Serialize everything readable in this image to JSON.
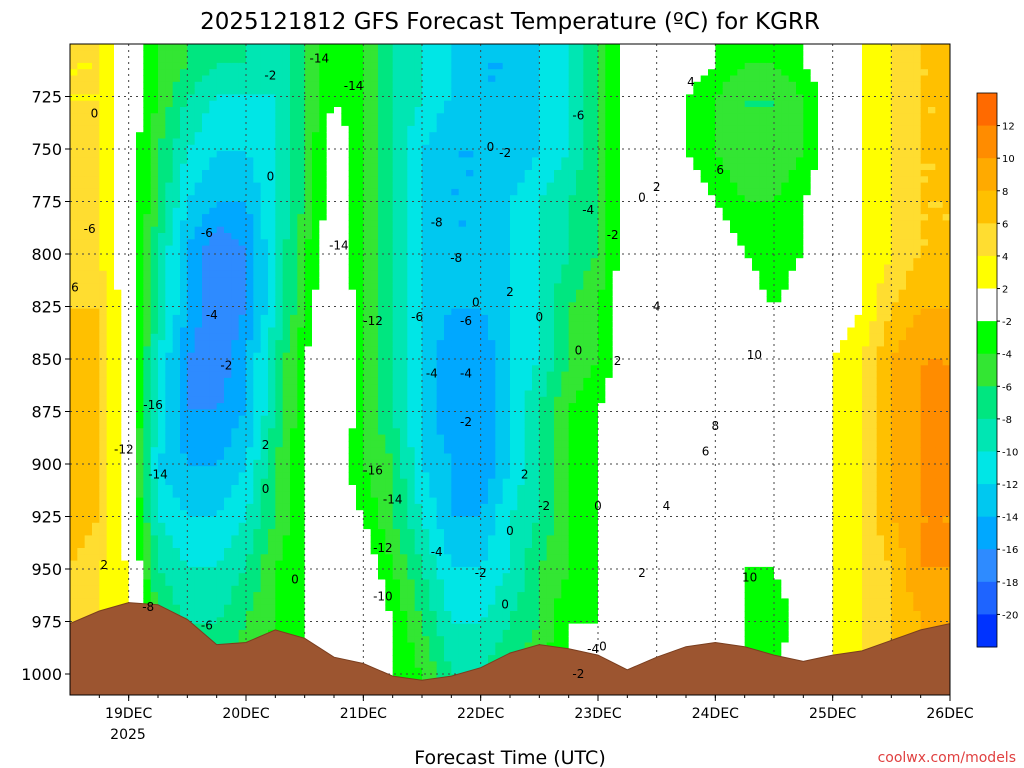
{
  "chart_data": {
    "type": "heatmap",
    "title": "2025121812 GFS Forecast Temperature (ºC) for KGRR",
    "xlabel": "Forecast Time (UTC)",
    "x_ticks": [
      "19DEC",
      "20DEC",
      "21DEC",
      "22DEC",
      "23DEC",
      "24DEC",
      "25DEC",
      "26DEC"
    ],
    "x_year_label": "2025",
    "y_ticks": [
      725,
      750,
      775,
      800,
      825,
      850,
      875,
      900,
      925,
      950,
      975,
      1000
    ],
    "ylim": [
      1010,
      700
    ],
    "y_unit": "hPa",
    "grid": true,
    "credit": "coolwx.com/models",
    "colorbar": {
      "labels": [
        12,
        10,
        8,
        6,
        4,
        2,
        -2,
        -4,
        -6,
        -8,
        -10,
        -12,
        -14,
        -16,
        -18,
        -20
      ],
      "colors": [
        "#ff6a00",
        "#ff8c00",
        "#ffaa00",
        "#ffc000",
        "#ffdd30",
        "#ffff00",
        "#ffffff",
        "#00ff00",
        "#33e633",
        "#00e680",
        "#00e6b3",
        "#00e6e6",
        "#00c8f0",
        "#00a8ff",
        "#2e8bff",
        "#1e64ff",
        "#0033ff"
      ]
    },
    "y_coords": [
      710,
      725,
      750,
      775,
      800,
      825,
      850,
      875,
      900,
      925,
      950,
      975,
      1000
    ],
    "x_hours": [
      0,
      6,
      12,
      18,
      24,
      30,
      36,
      42,
      48,
      54,
      60,
      66,
      72,
      78,
      84,
      90,
      96,
      102,
      108,
      114,
      120,
      126,
      132,
      138,
      144,
      150,
      156,
      162,
      168,
      174,
      180
    ],
    "temperature_c": [
      [
        4,
        4,
        0,
        -4,
        -6,
        -8,
        -8,
        -10,
        -6,
        -2,
        -4,
        -8,
        -10,
        -12,
        -14,
        -14,
        -12,
        -10,
        -6,
        0,
        0,
        0,
        -2,
        -4,
        -4,
        -2,
        0,
        2,
        4,
        6,
        6
      ],
      [
        4,
        4,
        0,
        -4,
        -8,
        -10,
        -10,
        -10,
        -6,
        -2,
        -4,
        -8,
        -10,
        -12,
        -14,
        -14,
        -12,
        -10,
        -6,
        0,
        0,
        -2,
        -4,
        -6,
        -6,
        -4,
        0,
        2,
        4,
        6,
        6
      ],
      [
        4,
        4,
        0,
        -6,
        -10,
        -12,
        -12,
        -10,
        -6,
        0,
        -4,
        -8,
        -12,
        -14,
        -14,
        -14,
        -12,
        -10,
        -6,
        0,
        0,
        -2,
        -4,
        -6,
        -6,
        -4,
        0,
        2,
        4,
        6,
        6
      ],
      [
        6,
        4,
        0,
        -6,
        -12,
        -14,
        -14,
        -10,
        -6,
        0,
        -4,
        -8,
        -12,
        -14,
        -14,
        -12,
        -10,
        -8,
        -6,
        0,
        0,
        0,
        -2,
        -4,
        -4,
        -2,
        0,
        2,
        4,
        6,
        6
      ],
      [
        6,
        4,
        0,
        -8,
        -14,
        -18,
        -16,
        -10,
        -4,
        0,
        -4,
        -8,
        -12,
        -14,
        -14,
        -12,
        -10,
        -8,
        -6,
        0,
        0,
        0,
        0,
        -2,
        -4,
        -2,
        0,
        2,
        4,
        6,
        6
      ],
      [
        6,
        6,
        0,
        -8,
        -14,
        -18,
        -16,
        -10,
        -4,
        2,
        -4,
        -8,
        -12,
        -14,
        -14,
        -12,
        -10,
        -6,
        -4,
        0,
        0,
        0,
        0,
        0,
        -2,
        0,
        0,
        2,
        6,
        8,
        8
      ],
      [
        8,
        6,
        0,
        -10,
        -16,
        -18,
        -14,
        -8,
        -2,
        2,
        -4,
        -8,
        -12,
        -16,
        -16,
        -12,
        -10,
        -6,
        -4,
        0,
        2,
        0,
        0,
        0,
        0,
        0,
        2,
        4,
        8,
        10,
        10
      ],
      [
        8,
        6,
        0,
        -10,
        -16,
        -16,
        -14,
        -8,
        -2,
        2,
        -4,
        -8,
        -12,
        -16,
        -16,
        -12,
        -8,
        -4,
        -2,
        0,
        2,
        0,
        0,
        0,
        0,
        0,
        2,
        4,
        8,
        10,
        10
      ],
      [
        8,
        6,
        0,
        -12,
        -14,
        -14,
        -12,
        -6,
        -2,
        0,
        -4,
        -6,
        -12,
        -14,
        -16,
        -12,
        -8,
        -4,
        -2,
        0,
        2,
        0,
        0,
        0,
        0,
        0,
        2,
        4,
        8,
        10,
        12
      ],
      [
        8,
        6,
        0,
        -10,
        -12,
        -12,
        -10,
        -6,
        -2,
        0,
        -2,
        -6,
        -10,
        -14,
        -14,
        -10,
        -8,
        -4,
        -2,
        0,
        0,
        0,
        0,
        -2,
        -2,
        0,
        2,
        4,
        8,
        10,
        10
      ],
      [
        6,
        4,
        2,
        -8,
        -10,
        -10,
        -8,
        -4,
        -2,
        0,
        0,
        -4,
        -8,
        -12,
        -12,
        -10,
        -6,
        -4,
        -2,
        0,
        0,
        0,
        0,
        -2,
        -2,
        0,
        2,
        4,
        6,
        10,
        10
      ],
      [
        4,
        4,
        2,
        -6,
        -8,
        -8,
        -6,
        -4,
        -2,
        0,
        2,
        -2,
        -6,
        -10,
        -10,
        -8,
        -6,
        -2,
        -2,
        0,
        0,
        0,
        0,
        -2,
        -4,
        0,
        2,
        4,
        6,
        8,
        10
      ],
      [
        4,
        4,
        2,
        -4,
        -6,
        -6,
        -4,
        -2,
        -2,
        0,
        0,
        -2,
        -4,
        -8,
        -8,
        -6,
        -4,
        -2,
        0,
        0,
        0,
        0,
        0,
        -2,
        -2,
        0,
        2,
        4,
        6,
        8,
        10
      ]
    ],
    "surface_pressure_hpa": [
      976,
      970,
      966,
      967,
      974,
      986,
      985,
      979,
      983,
      992,
      995,
      1001,
      1003,
      1001,
      997,
      990,
      986,
      988,
      991,
      998,
      992,
      987,
      985,
      987,
      991,
      994,
      991,
      989,
      984,
      979,
      976
    ],
    "contour_labels": [
      {
        "text": "0",
        "hour": 5,
        "p": 733
      },
      {
        "text": "-6",
        "hour": 4,
        "p": 788
      },
      {
        "text": "6",
        "hour": 1,
        "p": 816
      },
      {
        "text": "-12",
        "hour": 11,
        "p": 893
      },
      {
        "text": "-16",
        "hour": 17,
        "p": 872
      },
      {
        "text": "-14",
        "hour": 18,
        "p": 905
      },
      {
        "text": "-6",
        "hour": 28,
        "p": 790
      },
      {
        "text": "-4",
        "hour": 29,
        "p": 829
      },
      {
        "text": "-2",
        "hour": 32,
        "p": 853
      },
      {
        "text": "2",
        "hour": 7,
        "p": 948
      },
      {
        "text": "-8",
        "hour": 16,
        "p": 968
      },
      {
        "text": "-6",
        "hour": 28,
        "p": 977
      },
      {
        "text": "0",
        "hour": 41,
        "p": 763
      },
      {
        "text": "2",
        "hour": 40,
        "p": 891
      },
      {
        "text": "0",
        "hour": 40,
        "p": 912
      },
      {
        "text": "-2",
        "hour": 41,
        "p": 715
      },
      {
        "text": "-14",
        "hour": 51,
        "p": 707
      },
      {
        "text": "0",
        "hour": 46,
        "p": 955
      },
      {
        "text": "-14",
        "hour": 58,
        "p": 720
      },
      {
        "text": "-14",
        "hour": 55,
        "p": 796
      },
      {
        "text": "-12",
        "hour": 62,
        "p": 832
      },
      {
        "text": "-16",
        "hour": 62,
        "p": 903
      },
      {
        "text": "-14",
        "hour": 66,
        "p": 917
      },
      {
        "text": "-12",
        "hour": 64,
        "p": 940
      },
      {
        "text": "-10",
        "hour": 64,
        "p": 963
      },
      {
        "text": "-8",
        "hour": 75,
        "p": 785
      },
      {
        "text": "-8",
        "hour": 79,
        "p": 802
      },
      {
        "text": "-6",
        "hour": 71,
        "p": 830
      },
      {
        "text": "-4",
        "hour": 74,
        "p": 857
      },
      {
        "text": "-4",
        "hour": 81,
        "p": 857
      },
      {
        "text": "-6",
        "hour": 81,
        "p": 832
      },
      {
        "text": "-2",
        "hour": 81,
        "p": 880
      },
      {
        "text": "-4",
        "hour": 75,
        "p": 942
      },
      {
        "text": "-2",
        "hour": 84,
        "p": 952
      },
      {
        "text": "0",
        "hour": 86,
        "p": 749
      },
      {
        "text": "-2",
        "hour": 89,
        "p": 752
      },
      {
        "text": "0",
        "hour": 83,
        "p": 823
      },
      {
        "text": "2",
        "hour": 90,
        "p": 818
      },
      {
        "text": "0",
        "hour": 96,
        "p": 830
      },
      {
        "text": "0",
        "hour": 90,
        "p": 932
      },
      {
        "text": "2",
        "hour": 93,
        "p": 905
      },
      {
        "text": "-2",
        "hour": 97,
        "p": 920
      },
      {
        "text": "0",
        "hour": 89,
        "p": 967
      },
      {
        "text": "-6",
        "hour": 104,
        "p": 734
      },
      {
        "text": "-4",
        "hour": 106,
        "p": 779
      },
      {
        "text": "-2",
        "hour": 111,
        "p": 791
      },
      {
        "text": "0",
        "hour": 117,
        "p": 773
      },
      {
        "text": "0",
        "hour": 104,
        "p": 846
      },
      {
        "text": "0",
        "hour": 108,
        "p": 920
      },
      {
        "text": "-4",
        "hour": 107,
        "p": 988
      },
      {
        "text": "0",
        "hour": 109,
        "p": 987
      },
      {
        "text": "-2",
        "hour": 104,
        "p": 1000
      },
      {
        "text": "2",
        "hour": 120,
        "p": 768
      },
      {
        "text": "4",
        "hour": 127,
        "p": 718
      },
      {
        "text": "6",
        "hour": 133,
        "p": 760
      },
      {
        "text": "4",
        "hour": 120,
        "p": 825
      },
      {
        "text": "2",
        "hour": 112,
        "p": 851
      },
      {
        "text": "10",
        "hour": 140,
        "p": 848
      },
      {
        "text": "8",
        "hour": 132,
        "p": 882
      },
      {
        "text": "6",
        "hour": 130,
        "p": 894
      },
      {
        "text": "4",
        "hour": 122,
        "p": 920
      },
      {
        "text": "2",
        "hour": 117,
        "p": 952
      },
      {
        "text": "10",
        "hour": 139,
        "p": 954
      }
    ]
  }
}
